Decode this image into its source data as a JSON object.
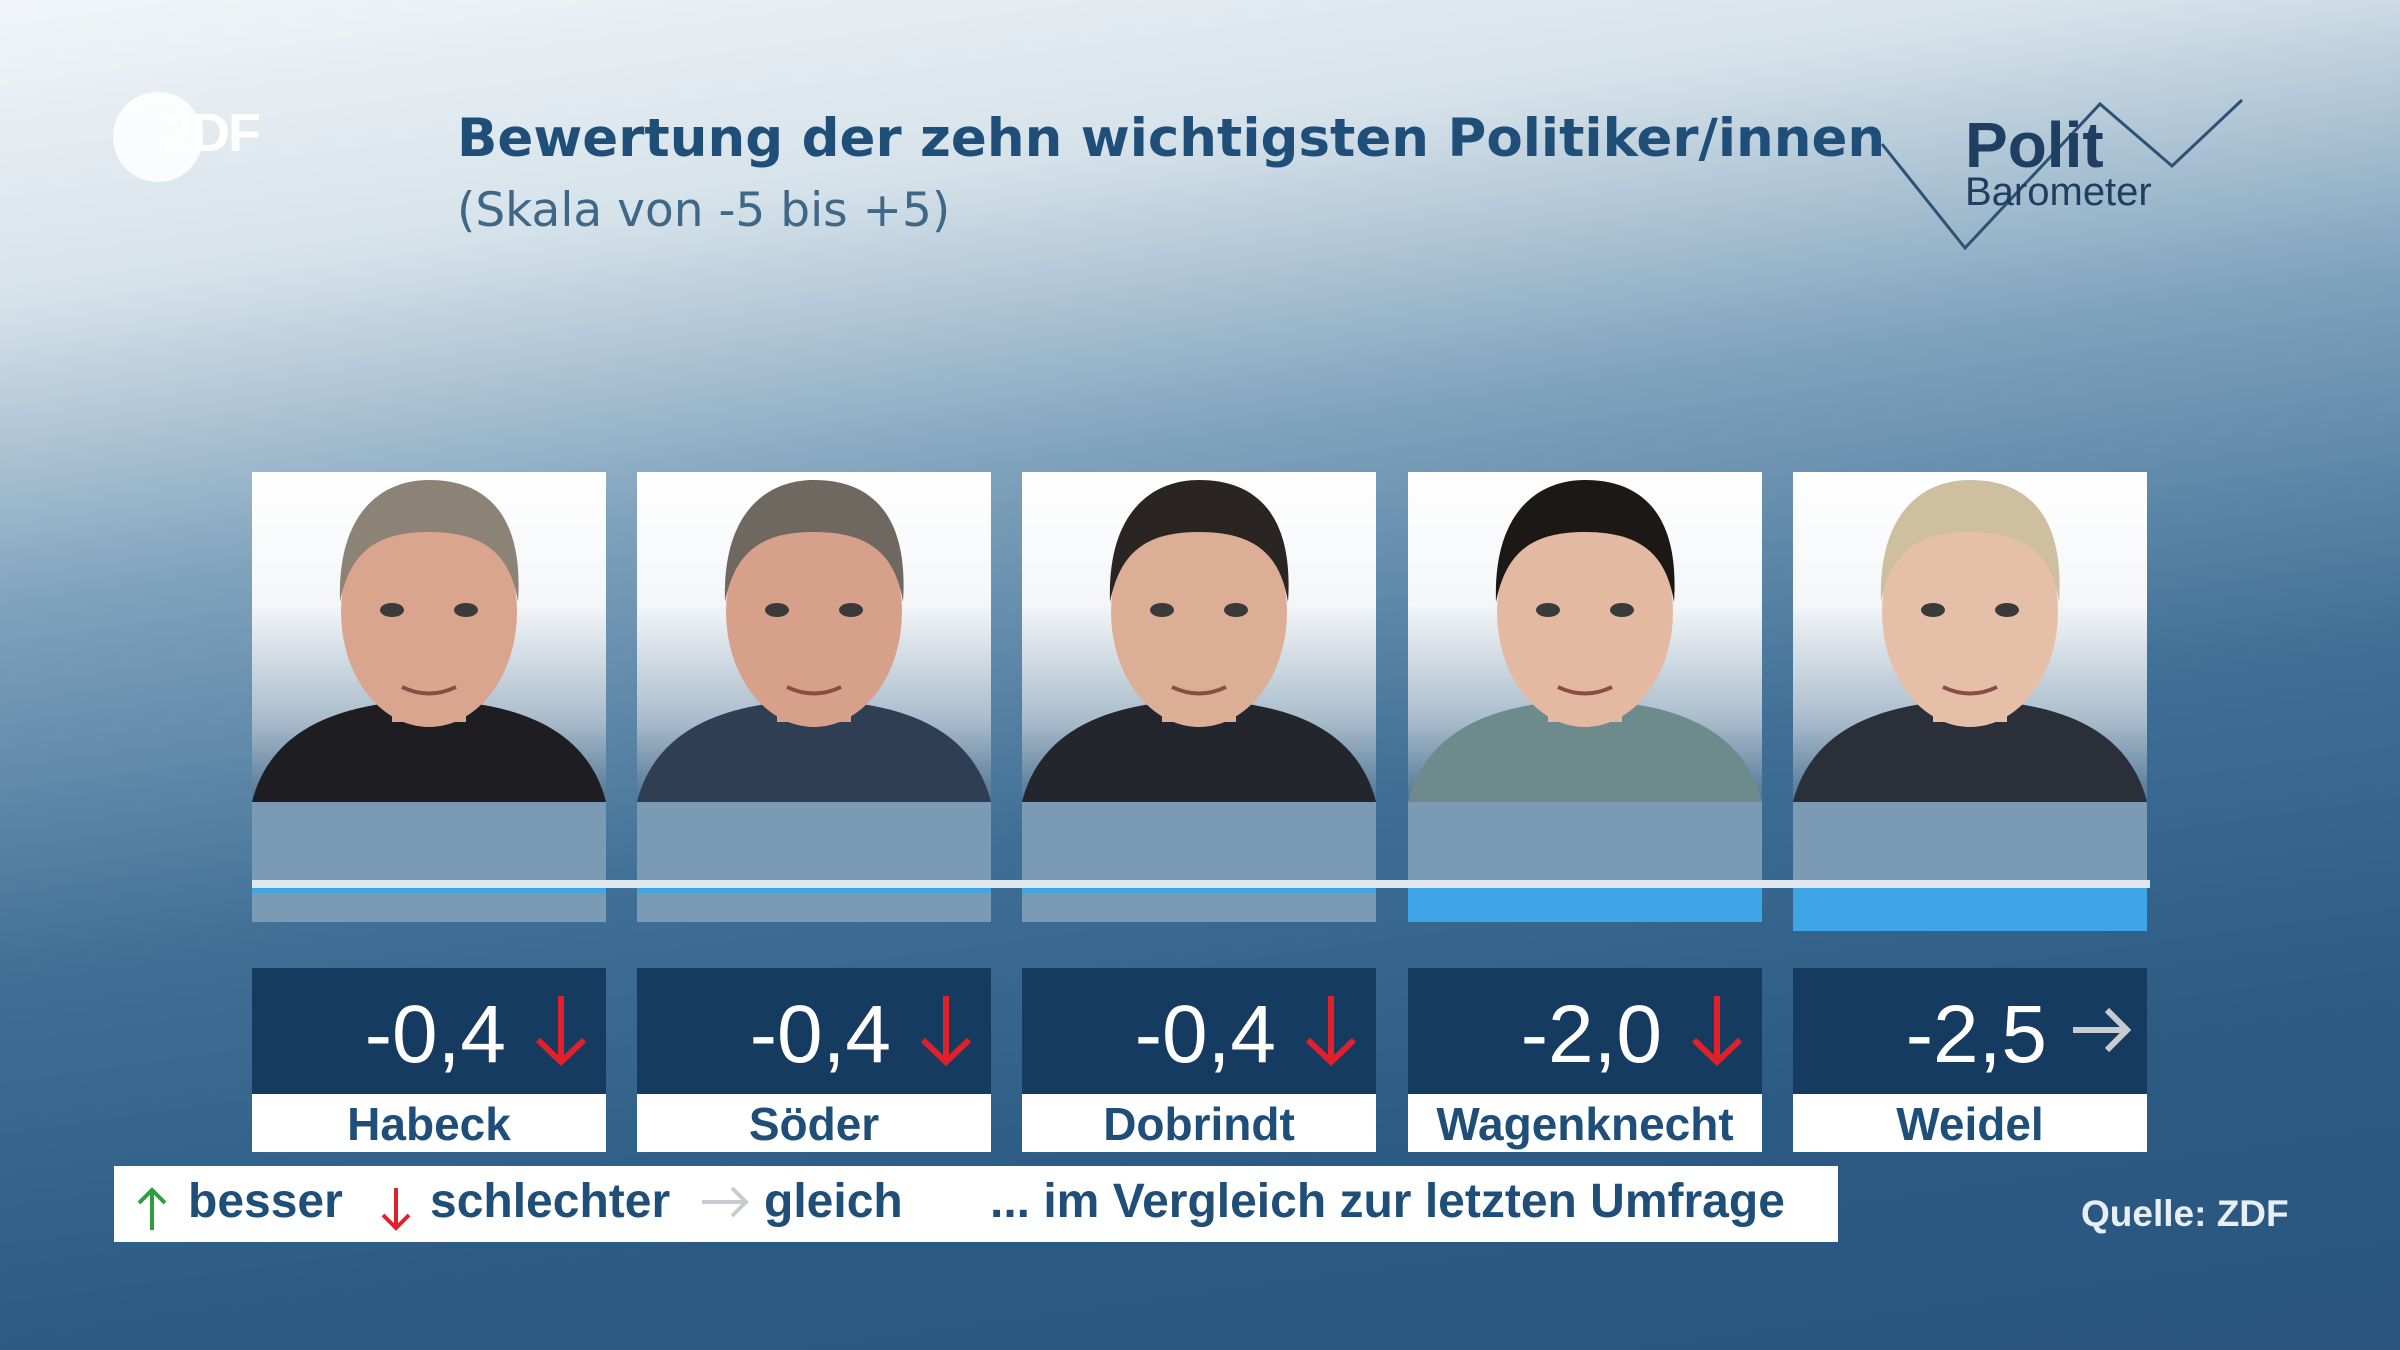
{
  "header": {
    "logo_text": "2DF",
    "title": "Bewertung der zehn wichtigsten Politiker/innen",
    "subtitle": "(Skala von -5 bis +5)",
    "brand_top": "Polit",
    "brand_bottom": "Barometer"
  },
  "chart_data": {
    "type": "bar",
    "title": "Bewertung der zehn wichtigsten Politiker/innen",
    "subtitle": "(Skala von -5 bis +5)",
    "ylim": [
      -5,
      5
    ],
    "categories": [
      "Habeck",
      "Söder",
      "Dobrindt",
      "Wagenknecht",
      "Weidel"
    ],
    "values": [
      -0.4,
      -0.4,
      -0.4,
      -2.0,
      -2.5
    ],
    "value_labels": [
      "-0,4",
      "-0,4",
      "-0,4",
      "-2,0",
      "-2,5"
    ],
    "trend": [
      "down",
      "down",
      "down",
      "down",
      "same"
    ]
  },
  "colors": {
    "bar": "#3ea6e6",
    "up": "#2e9e3e",
    "down": "#e0202a",
    "same": "#c8ccd0"
  },
  "legend": {
    "better": "besser",
    "worse": "schlechter",
    "same": "gleich",
    "comparison": "... im Vergleich zur letzten Umfrage"
  },
  "source": "Quelle: ZDF"
}
